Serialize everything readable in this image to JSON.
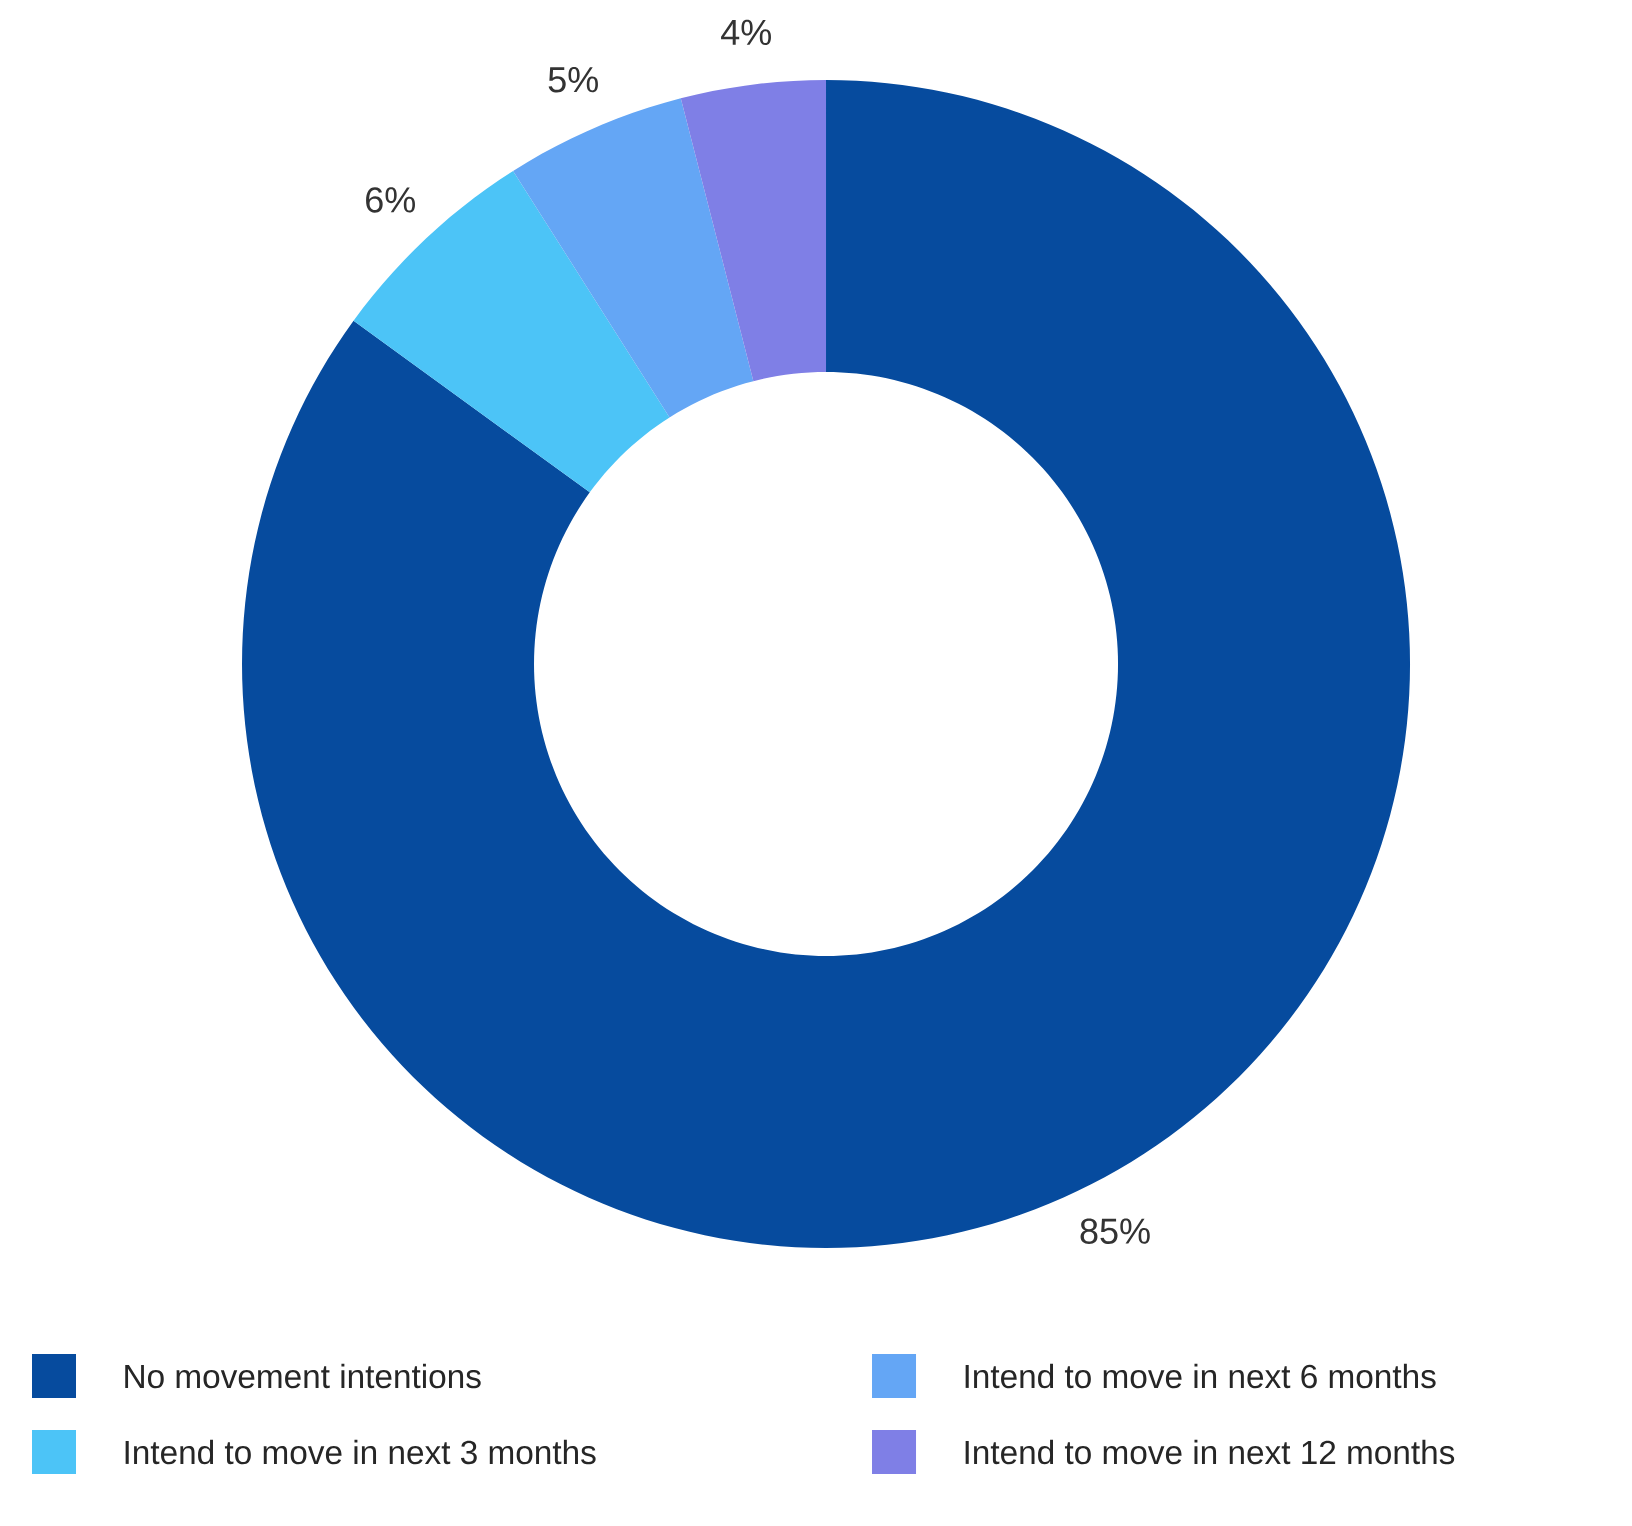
{
  "chart_data": {
    "type": "donut",
    "categories": [
      "No movement intentions",
      "Intend to move in next 3 months",
      "Intend to move in next 6 months",
      "Intend to move in next 12 months"
    ],
    "values": [
      85,
      6,
      5,
      4
    ],
    "colors": [
      "#064b9e",
      "#4cc4f7",
      "#64a6f5",
      "#7f7fe6"
    ],
    "value_labels": [
      "85%",
      "6%",
      "5%",
      "4%"
    ],
    "legend": "bottom"
  }
}
